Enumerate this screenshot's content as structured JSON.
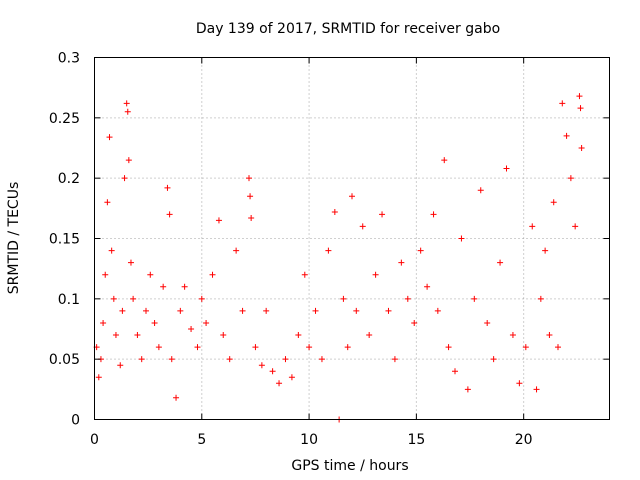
{
  "chart_data": {
    "type": "scatter",
    "title": "Day 139 of 2017, SRMTID for receiver gabo",
    "xlabel": "GPS time / hours",
    "ylabel": "SRMTID / TECUs",
    "xlim": [
      0,
      24
    ],
    "ylim": [
      0,
      0.3
    ],
    "x_ticks": [
      0,
      5,
      10,
      15,
      20
    ],
    "x_tick_labels": [
      "0",
      "5",
      "10",
      "15",
      "20"
    ],
    "y_ticks": [
      0,
      0.05,
      0.1,
      0.15,
      0.2,
      0.25,
      0.3
    ],
    "y_tick_labels": [
      "0",
      "0.05",
      "0.1",
      "0.15",
      "0.2",
      "0.25",
      "0.3"
    ],
    "grid": true,
    "marker": "plus",
    "color": "#ff0000",
    "series": [
      {
        "name": "SRMTID",
        "points": [
          [
            0.1,
            0.06
          ],
          [
            0.2,
            0.035
          ],
          [
            0.3,
            0.05
          ],
          [
            0.4,
            0.08
          ],
          [
            0.5,
            0.12
          ],
          [
            0.6,
            0.18
          ],
          [
            0.7,
            0.234
          ],
          [
            0.8,
            0.14
          ],
          [
            0.9,
            0.1
          ],
          [
            1.0,
            0.07
          ],
          [
            1.2,
            0.045
          ],
          [
            1.3,
            0.09
          ],
          [
            1.4,
            0.2
          ],
          [
            1.5,
            0.262
          ],
          [
            1.55,
            0.255
          ],
          [
            1.6,
            0.215
          ],
          [
            1.7,
            0.13
          ],
          [
            1.8,
            0.1
          ],
          [
            2.0,
            0.07
          ],
          [
            2.2,
            0.05
          ],
          [
            2.4,
            0.09
          ],
          [
            2.6,
            0.12
          ],
          [
            2.8,
            0.08
          ],
          [
            3.0,
            0.06
          ],
          [
            3.2,
            0.11
          ],
          [
            3.4,
            0.192
          ],
          [
            3.5,
            0.17
          ],
          [
            3.6,
            0.05
          ],
          [
            3.8,
            0.018
          ],
          [
            4.0,
            0.09
          ],
          [
            4.2,
            0.11
          ],
          [
            4.5,
            0.075
          ],
          [
            4.8,
            0.06
          ],
          [
            5.0,
            0.1
          ],
          [
            5.2,
            0.08
          ],
          [
            5.5,
            0.12
          ],
          [
            5.8,
            0.165
          ],
          [
            6.0,
            0.07
          ],
          [
            6.3,
            0.05
          ],
          [
            6.6,
            0.14
          ],
          [
            6.9,
            0.09
          ],
          [
            7.2,
            0.2
          ],
          [
            7.25,
            0.185
          ],
          [
            7.3,
            0.167
          ],
          [
            7.5,
            0.06
          ],
          [
            7.8,
            0.045
          ],
          [
            8.0,
            0.09
          ],
          [
            8.3,
            0.04
          ],
          [
            8.6,
            0.03
          ],
          [
            8.9,
            0.05
          ],
          [
            9.2,
            0.035
          ],
          [
            9.5,
            0.07
          ],
          [
            9.8,
            0.12
          ],
          [
            10.0,
            0.06
          ],
          [
            10.3,
            0.09
          ],
          [
            10.6,
            0.05
          ],
          [
            10.9,
            0.14
          ],
          [
            11.2,
            0.172
          ],
          [
            11.4,
            0.0
          ],
          [
            11.6,
            0.1
          ],
          [
            11.8,
            0.06
          ],
          [
            12.0,
            0.185
          ],
          [
            12.2,
            0.09
          ],
          [
            12.5,
            0.16
          ],
          [
            12.8,
            0.07
          ],
          [
            13.1,
            0.12
          ],
          [
            13.4,
            0.17
          ],
          [
            13.7,
            0.09
          ],
          [
            14.0,
            0.05
          ],
          [
            14.3,
            0.13
          ],
          [
            14.6,
            0.1
          ],
          [
            14.9,
            0.08
          ],
          [
            15.2,
            0.14
          ],
          [
            15.5,
            0.11
          ],
          [
            15.8,
            0.17
          ],
          [
            16.0,
            0.09
          ],
          [
            16.3,
            0.215
          ],
          [
            16.5,
            0.06
          ],
          [
            16.8,
            0.04
          ],
          [
            17.1,
            0.15
          ],
          [
            17.4,
            0.025
          ],
          [
            17.7,
            0.1
          ],
          [
            18.0,
            0.19
          ],
          [
            18.3,
            0.08
          ],
          [
            18.6,
            0.05
          ],
          [
            18.9,
            0.13
          ],
          [
            19.2,
            0.208
          ],
          [
            19.5,
            0.07
          ],
          [
            19.8,
            0.03
          ],
          [
            20.1,
            0.06
          ],
          [
            20.4,
            0.16
          ],
          [
            20.6,
            0.025
          ],
          [
            20.8,
            0.1
          ],
          [
            21.0,
            0.14
          ],
          [
            21.2,
            0.07
          ],
          [
            21.4,
            0.18
          ],
          [
            21.6,
            0.06
          ],
          [
            21.8,
            0.262
          ],
          [
            22.0,
            0.235
          ],
          [
            22.2,
            0.2
          ],
          [
            22.4,
            0.16
          ],
          [
            22.6,
            0.268
          ],
          [
            22.65,
            0.258
          ],
          [
            22.7,
            0.225
          ]
        ]
      }
    ]
  }
}
